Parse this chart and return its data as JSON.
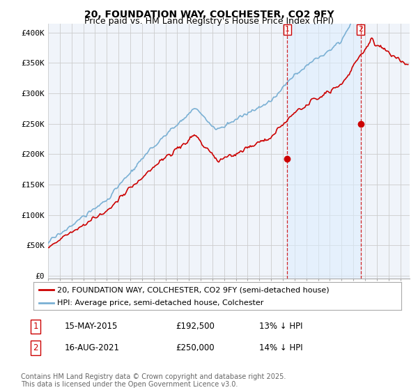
{
  "title": "20, FOUNDATION WAY, COLCHESTER, CO2 9FY",
  "subtitle": "Price paid vs. HM Land Registry's House Price Index (HPI)",
  "ylabel_ticks": [
    "£0",
    "£50K",
    "£100K",
    "£150K",
    "£200K",
    "£250K",
    "£300K",
    "£350K",
    "£400K"
  ],
  "ytick_values": [
    0,
    50000,
    100000,
    150000,
    200000,
    250000,
    300000,
    350000,
    400000
  ],
  "ylim": [
    -5000,
    415000
  ],
  "xlim_start": 1995.3,
  "xlim_end": 2025.8,
  "red_color": "#cc0000",
  "blue_color": "#7ab0d4",
  "blue_fill_color": "#ddeeff",
  "vline_color": "#cc0000",
  "marker1_x": 2015.37,
  "marker1_y": 192500,
  "marker2_x": 2021.62,
  "marker2_y": 250000,
  "legend_line1": "20, FOUNDATION WAY, COLCHESTER, CO2 9FY (semi-detached house)",
  "legend_line2": "HPI: Average price, semi-detached house, Colchester",
  "ann1_label": "1",
  "ann1_date": "15-MAY-2015",
  "ann1_price": "£192,500",
  "ann1_hpi": "13% ↓ HPI",
  "ann2_label": "2",
  "ann2_date": "16-AUG-2021",
  "ann2_price": "£250,000",
  "ann2_hpi": "14% ↓ HPI",
  "footer": "Contains HM Land Registry data © Crown copyright and database right 2025.\nThis data is licensed under the Open Government Licence v3.0.",
  "title_fontsize": 10,
  "subtitle_fontsize": 9,
  "tick_fontsize": 8,
  "legend_fontsize": 8,
  "ann_fontsize": 8.5,
  "footer_fontsize": 7,
  "background_color": "#f0f4fa"
}
